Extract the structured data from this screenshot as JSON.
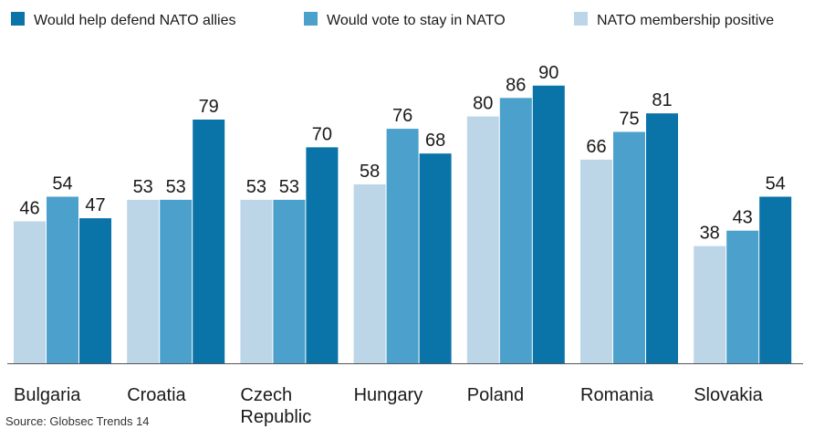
{
  "chart_data": {
    "type": "bar",
    "categories": [
      "Bulgaria",
      "Croatia",
      "Czech Republic",
      "Hungary",
      "Poland",
      "Romania",
      "Slovakia"
    ],
    "category_lines": [
      [
        "Bulgaria"
      ],
      [
        "Croatia"
      ],
      [
        "Czech",
        "Republic"
      ],
      [
        "Hungary"
      ],
      [
        "Poland"
      ],
      [
        "Romania"
      ],
      [
        "Slovakia"
      ]
    ],
    "series": [
      {
        "name": "NATO membership positive",
        "color": "#bcd6e8",
        "values": [
          46,
          53,
          53,
          58,
          80,
          66,
          38
        ]
      },
      {
        "name": "Would vote to stay in NATO",
        "color": "#4ba1cc",
        "values": [
          54,
          53,
          53,
          76,
          86,
          75,
          43
        ]
      },
      {
        "name": "Would help defend NATO allies",
        "color": "#0a73a8",
        "values": [
          47,
          79,
          70,
          68,
          90,
          81,
          54
        ]
      }
    ],
    "legend_order": [
      2,
      1,
      0
    ],
    "ylim": [
      0,
      100
    ],
    "legend_position": "top",
    "grid": false,
    "source": "Source: Globsec Trends 14"
  }
}
